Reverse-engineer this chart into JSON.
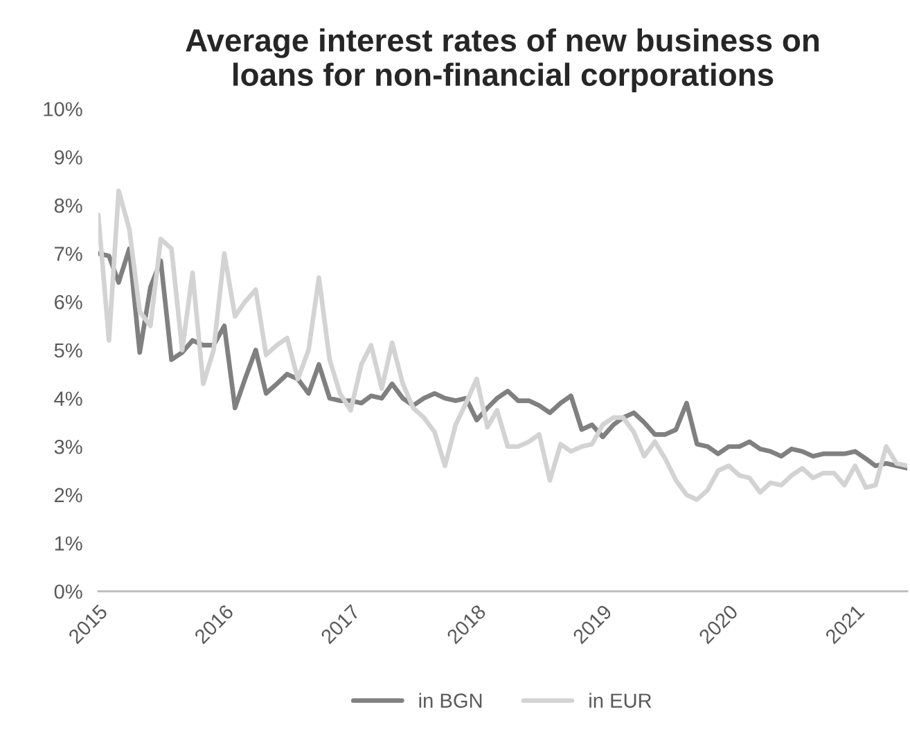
{
  "chart_data": {
    "type": "line",
    "title": "Average interest rates of new business on\nloans for non-financial corporations",
    "x": [
      "2015-01",
      "2015-02",
      "2015-03",
      "2015-04",
      "2015-05",
      "2015-06",
      "2015-07",
      "2015-08",
      "2015-09",
      "2015-10",
      "2015-11",
      "2015-12",
      "2016-01",
      "2016-02",
      "2016-03",
      "2016-04",
      "2016-05",
      "2016-06",
      "2016-07",
      "2016-08",
      "2016-09",
      "2016-10",
      "2016-11",
      "2016-12",
      "2017-01",
      "2017-02",
      "2017-03",
      "2017-04",
      "2017-05",
      "2017-06",
      "2017-07",
      "2017-08",
      "2017-09",
      "2017-10",
      "2017-11",
      "2017-12",
      "2018-01",
      "2018-02",
      "2018-03",
      "2018-04",
      "2018-05",
      "2018-06",
      "2018-07",
      "2018-08",
      "2018-09",
      "2018-10",
      "2018-11",
      "2018-12",
      "2019-01",
      "2019-02",
      "2019-03",
      "2019-04",
      "2019-05",
      "2019-06",
      "2019-07",
      "2019-08",
      "2019-09",
      "2019-10",
      "2019-11",
      "2019-12",
      "2020-01",
      "2020-02",
      "2020-03",
      "2020-04",
      "2020-05",
      "2020-06",
      "2020-07",
      "2020-08",
      "2020-09",
      "2020-10",
      "2020-11",
      "2020-12",
      "2021-01",
      "2021-02",
      "2021-03",
      "2021-04",
      "2021-05",
      "2021-06"
    ],
    "series": [
      {
        "name": "in BGN",
        "color": "#808080",
        "values": [
          7.0,
          6.95,
          6.4,
          7.1,
          4.95,
          6.3,
          6.85,
          4.8,
          4.95,
          5.2,
          5.1,
          5.1,
          5.5,
          3.8,
          4.4,
          5.0,
          4.1,
          4.3,
          4.5,
          4.4,
          4.1,
          4.7,
          4.0,
          3.95,
          3.95,
          3.9,
          4.05,
          4.0,
          4.3,
          4.0,
          3.85,
          4.0,
          4.1,
          4.0,
          3.95,
          4.0,
          3.55,
          3.8,
          4.0,
          4.15,
          3.95,
          3.95,
          3.85,
          3.7,
          3.9,
          4.05,
          3.35,
          3.45,
          3.2,
          3.45,
          3.6,
          3.7,
          3.5,
          3.25,
          3.25,
          3.35,
          3.9,
          3.05,
          3.0,
          2.85,
          3.0,
          3.0,
          3.1,
          2.95,
          2.9,
          2.8,
          2.95,
          2.9,
          2.8,
          2.85,
          2.85,
          2.85,
          2.9,
          2.75,
          2.6,
          2.65,
          2.6,
          2.55
        ]
      },
      {
        "name": "in EUR",
        "color": "#d3d3d3",
        "values": [
          7.8,
          5.2,
          8.3,
          7.5,
          5.8,
          5.5,
          7.3,
          7.1,
          5.0,
          6.6,
          4.3,
          5.0,
          7.0,
          5.7,
          6.0,
          6.25,
          4.9,
          5.1,
          5.25,
          4.4,
          5.0,
          6.5,
          4.8,
          4.1,
          3.75,
          4.7,
          5.1,
          4.2,
          5.15,
          4.3,
          3.8,
          3.6,
          3.3,
          2.6,
          3.45,
          3.9,
          4.4,
          3.4,
          3.75,
          3.0,
          3.0,
          3.1,
          3.25,
          2.3,
          3.05,
          2.9,
          3.0,
          3.05,
          3.45,
          3.6,
          3.6,
          3.3,
          2.8,
          3.1,
          2.75,
          2.3,
          2.0,
          1.9,
          2.1,
          2.5,
          2.6,
          2.4,
          2.35,
          2.05,
          2.25,
          2.2,
          2.4,
          2.55,
          2.35,
          2.45,
          2.45,
          2.2,
          2.6,
          2.15,
          2.2,
          3.0,
          2.65,
          2.6
        ]
      }
    ],
    "xlim": [
      "2015-01",
      "2021-06"
    ],
    "xticks": [
      {
        "value": "2015-01",
        "label": "2015"
      },
      {
        "value": "2016-01",
        "label": "2016"
      },
      {
        "value": "2017-01",
        "label": "2017"
      },
      {
        "value": "2018-01",
        "label": "2018"
      },
      {
        "value": "2019-01",
        "label": "2019"
      },
      {
        "value": "2020-01",
        "label": "2020"
      },
      {
        "value": "2021-01",
        "label": "2021"
      }
    ],
    "ylim": [
      0,
      10
    ],
    "yticks": [
      {
        "value": 0,
        "label": "0%"
      },
      {
        "value": 1,
        "label": "1%"
      },
      {
        "value": 2,
        "label": "2%"
      },
      {
        "value": 3,
        "label": "3%"
      },
      {
        "value": 4,
        "label": "4%"
      },
      {
        "value": 5,
        "label": "5%"
      },
      {
        "value": 6,
        "label": "6%"
      },
      {
        "value": 7,
        "label": "7%"
      },
      {
        "value": 8,
        "label": "8%"
      },
      {
        "value": 9,
        "label": "9%"
      },
      {
        "value": 10,
        "label": "10%"
      }
    ],
    "grid": false,
    "legend": "bottom",
    "line_style": "solid"
  }
}
